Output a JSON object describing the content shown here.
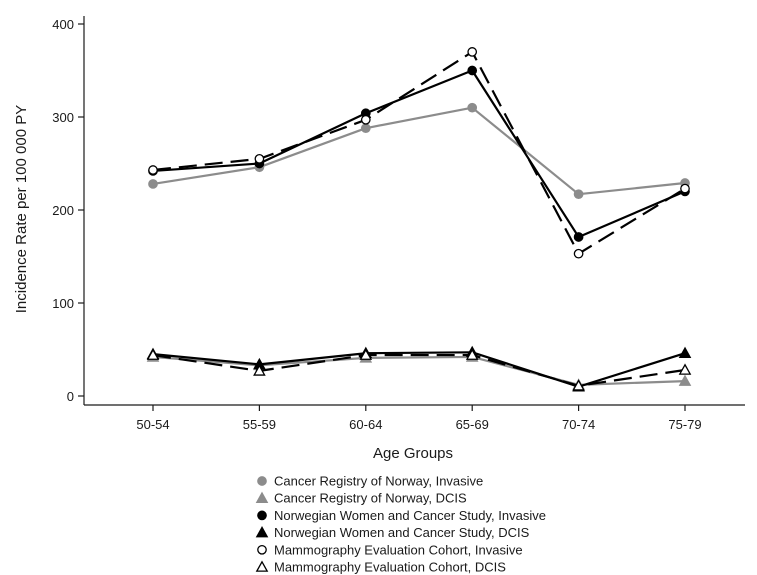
{
  "chart_data": {
    "type": "line",
    "title": "",
    "xlabel": "Age Groups",
    "ylabel": "Incidence Rate per 100 000 PY",
    "categories": [
      "50-54",
      "55-59",
      "60-64",
      "65-69",
      "70-74",
      "75-79"
    ],
    "ylim": [
      0,
      400
    ],
    "yticks": [
      0,
      100,
      200,
      300,
      400
    ],
    "grid": false,
    "legend_position": "bottom",
    "series": [
      {
        "name": "Cancer Registry of Norway, Invasive",
        "values": [
          228,
          246,
          288,
          310,
          217,
          229
        ],
        "color": "#8c8c8c",
        "marker": "circle-filled",
        "line": "solid"
      },
      {
        "name": "Cancer Registry of Norway, DCIS",
        "values": [
          42,
          33,
          41,
          42,
          12,
          16
        ],
        "color": "#8c8c8c",
        "marker": "triangle-filled",
        "line": "solid"
      },
      {
        "name": "Norwegian Women and Cancer Study, Invasive",
        "values": [
          242,
          250,
          304,
          350,
          171,
          220
        ],
        "color": "#000000",
        "marker": "circle-filled",
        "line": "solid"
      },
      {
        "name": "Norwegian Women and Cancer Study, DCIS",
        "values": [
          45,
          34,
          46,
          47,
          10,
          46
        ],
        "color": "#000000",
        "marker": "triangle-filled",
        "line": "solid"
      },
      {
        "name": "Mammography Evaluation Cohort, Invasive",
        "values": [
          243,
          255,
          297,
          370,
          153,
          223
        ],
        "color": "#000000",
        "marker": "circle-open",
        "line": "dashed"
      },
      {
        "name": "Mammography Evaluation Cohort, DCIS",
        "values": [
          44,
          27,
          44,
          44,
          11,
          28
        ],
        "color": "#000000",
        "marker": "triangle-open",
        "line": "dashed"
      }
    ]
  }
}
